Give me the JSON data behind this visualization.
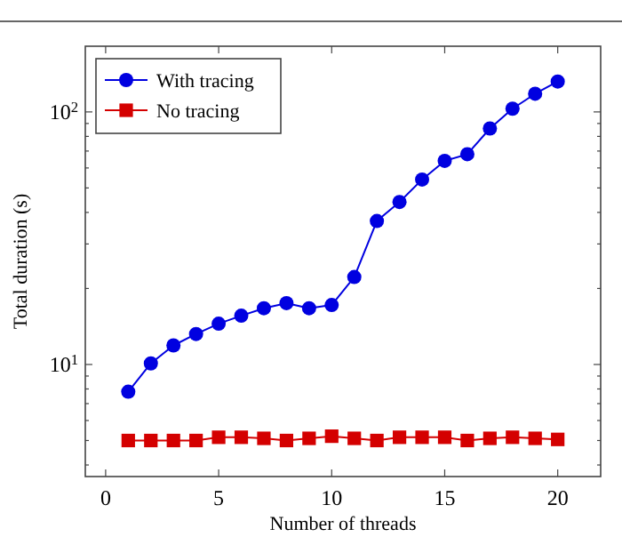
{
  "chart_data": {
    "type": "line",
    "xlabel": "Number of threads",
    "ylabel": "Total duration (s)",
    "x": [
      1,
      2,
      3,
      4,
      5,
      6,
      7,
      8,
      9,
      10,
      11,
      12,
      13,
      14,
      15,
      16,
      17,
      18,
      19,
      20
    ],
    "series": [
      {
        "name": "With tracing",
        "color": "#0000e0",
        "marker": "circle",
        "values": [
          7.8,
          10.1,
          11.9,
          13.2,
          14.5,
          15.6,
          16.7,
          17.5,
          16.7,
          17.2,
          22.2,
          37,
          44,
          54,
          64,
          68,
          86,
          103,
          118,
          132
        ]
      },
      {
        "name": "No tracing",
        "color": "#d40000",
        "marker": "square",
        "values": [
          5.0,
          5.0,
          5.0,
          5.0,
          5.15,
          5.15,
          5.1,
          5.0,
          5.1,
          5.2,
          5.1,
          5.0,
          5.15,
          5.15,
          5.15,
          5.0,
          5.1,
          5.15,
          5.1,
          5.05
        ]
      }
    ],
    "log": true,
    "xlim": [
      -0.9,
      21.9
    ],
    "ylim": [
      3.6,
      182
    ],
    "xticks": [
      0,
      5,
      10,
      15,
      20
    ],
    "yticks": [
      {
        "value": 4,
        "label": null
      },
      {
        "value": 5,
        "label": null
      },
      {
        "value": 6,
        "label": null
      },
      {
        "value": 7,
        "label": null
      },
      {
        "value": 8,
        "label": null
      },
      {
        "value": 9,
        "label": null
      },
      {
        "value": 10,
        "label": "10$^{1}$"
      },
      {
        "value": 20,
        "label": null
      },
      {
        "value": 30,
        "label": null
      },
      {
        "value": 40,
        "label": null
      },
      {
        "value": 50,
        "label": null
      },
      {
        "value": 60,
        "label": null
      },
      {
        "value": 70,
        "label": null
      },
      {
        "value": 80,
        "label": null
      },
      {
        "value": 90,
        "label": null
      },
      {
        "value": 100,
        "label": "10$^{2}$"
      }
    ],
    "grid": false,
    "legend": "top left",
    "line_style": "solid"
  }
}
